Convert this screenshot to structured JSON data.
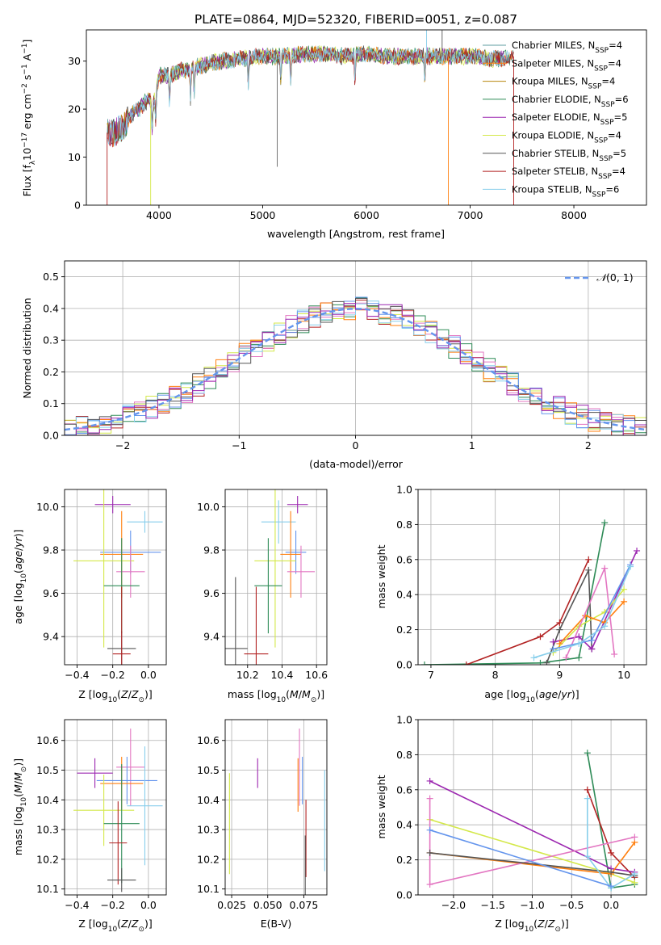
{
  "figure_title": "PLATE=0864, MJD=52320, FIBERID=0051, z=0.087",
  "colors": {
    "miles_chabrier": "#5f9ea0",
    "miles_salpeter": "#ff7f0e",
    "miles_kroupa": "#b8860b",
    "elodie_chabrier": "#2e8b57",
    "elodie_salpeter": "#9c27b0",
    "elodie_kroupa": "#d4e84a",
    "stelib_chabrier": "#555555",
    "stelib_salpeter": "#b22222",
    "stelib_kroupa": "#87ceeb",
    "extra_pink": "#e377c2",
    "extra_blue": "#6495ed",
    "normal_curve": "#6495ed"
  },
  "chart_data": [
    {
      "id": "spectrum",
      "type": "line",
      "xlabel": "wavelength [Angstrom, rest frame]",
      "ylabel": "Flux [f_λ 10^-17 erg cm^-2 s^-1 A^-1]",
      "xlim": [
        3300,
        8700
      ],
      "ylim": [
        0,
        36.5
      ],
      "xticks": [
        4000,
        5000,
        6000,
        7000,
        8000
      ],
      "yticks": [
        0,
        10,
        20,
        30
      ],
      "grid": false,
      "legend_position": "right",
      "continuum_x": [
        3500,
        3550,
        3650,
        3700,
        3800,
        3900,
        3950,
        4000,
        4100,
        4200,
        4400,
        4600,
        4800,
        5000,
        5200,
        5400,
        5600,
        5800,
        6000,
        6200,
        6400,
        6600,
        6800,
        7000,
        7200,
        7400
      ],
      "continuum_y": [
        15,
        15,
        16,
        18,
        20,
        22,
        21,
        27,
        27,
        28,
        29,
        30,
        30.5,
        31,
        31,
        31.5,
        31.5,
        31,
        31.5,
        31,
        31,
        31,
        31,
        31,
        30.5,
        30.5
      ],
      "series": [
        {
          "name": "Chabrier MILES, N_SSP=4",
          "legend_main": "Chabrier MILES, N",
          "legend_sub": "SSP",
          "legend_tail": "=4",
          "color_key": "miles_chabrier"
        },
        {
          "name": "Salpeter MILES, N_SSP=4",
          "legend_main": "Salpeter MILES, N",
          "legend_sub": "SSP",
          "legend_tail": "=4",
          "color_key": "miles_salpeter"
        },
        {
          "name": "Kroupa MILES, N_SSP=4",
          "legend_main": "Kroupa MILES, N",
          "legend_sub": "SSP",
          "legend_tail": "=4",
          "color_key": "miles_kroupa"
        },
        {
          "name": "Chabrier ELODIE, N_SSP=6",
          "legend_main": "Chabrier ELODIE, N",
          "legend_sub": "SSP",
          "legend_tail": "=6",
          "color_key": "elodie_chabrier"
        },
        {
          "name": "Salpeter ELODIE, N_SSP=5",
          "legend_main": "Salpeter ELODIE, N",
          "legend_sub": "SSP",
          "legend_tail": "=5",
          "color_key": "elodie_salpeter"
        },
        {
          "name": "Kroupa ELODIE, N_SSP=4",
          "legend_main": "Kroupa ELODIE, N",
          "legend_sub": "SSP",
          "legend_tail": "=4",
          "color_key": "elodie_kroupa"
        },
        {
          "name": "Chabrier STELIB, N_SSP=5",
          "legend_main": "Chabrier STELIB, N",
          "legend_sub": "SSP",
          "legend_tail": "=5",
          "color_key": "stelib_chabrier"
        },
        {
          "name": "Salpeter STELIB, N_SSP=4",
          "legend_main": "Salpeter STELIB, N",
          "legend_sub": "SSP",
          "legend_tail": "=4",
          "color_key": "stelib_salpeter"
        },
        {
          "name": "Kroupa STELIB, N_SSP=6",
          "legend_main": "Kroupa STELIB, N",
          "legend_sub": "SSP",
          "legend_tail": "=6",
          "color_key": "stelib_kroupa"
        }
      ]
    },
    {
      "id": "residuals",
      "type": "step-histogram",
      "xlabel": "(data-model)/error",
      "ylabel": "Normed distribution",
      "xlim": [
        -2.5,
        2.5
      ],
      "ylim": [
        0,
        0.55
      ],
      "xticks": [
        -2,
        -1,
        0,
        1,
        2
      ],
      "yticks": [
        0.0,
        0.1,
        0.2,
        0.3,
        0.4,
        0.5
      ],
      "grid": true,
      "legend": "N(0,1)",
      "legend_position": "top-right",
      "bin_width": 0.1
    },
    {
      "id": "age_vs_Z",
      "type": "errorbar",
      "xlabel": "Z [log10(Z/Z⊙)]",
      "ylabel": "age [log10(age/yr)]",
      "xlim": [
        -0.47,
        0.1
      ],
      "ylim": [
        9.27,
        10.08
      ],
      "xticks": [
        -0.4,
        -0.2,
        0.0
      ],
      "yticks": [
        9.4,
        9.6,
        9.8,
        10.0
      ],
      "grid": true,
      "points": [
        {
          "color_key": "elodie_salpeter",
          "x": -0.2,
          "xerr": 0.1,
          "y": 10.01,
          "yerr": 0.04
        },
        {
          "color_key": "stelib_kroupa",
          "x": -0.02,
          "xerr": 0.1,
          "y": 9.93,
          "yerr": 0.05
        },
        {
          "color_key": "extra_blue",
          "x": -0.1,
          "xerr": 0.17,
          "y": 9.79,
          "yerr": 0.1
        },
        {
          "color_key": "miles_salpeter",
          "x": -0.15,
          "xerr": 0.12,
          "y": 9.78,
          "yerr": 0.2
        },
        {
          "color_key": "elodie_kroupa",
          "x": -0.25,
          "xerr": 0.17,
          "y": 9.75,
          "yerr": 0.4
        },
        {
          "color_key": "extra_pink",
          "x": -0.1,
          "xerr": 0.08,
          "y": 9.7,
          "yerr": 0.12
        },
        {
          "color_key": "elodie_chabrier",
          "x": -0.15,
          "xerr": 0.1,
          "y": 9.635,
          "yerr": 0.22
        },
        {
          "color_key": "stelib_chabrier",
          "x": -0.15,
          "xerr": 0.08,
          "y": 9.345,
          "yerr": 0.08
        },
        {
          "color_key": "stelib_salpeter",
          "x": -0.15,
          "xerr": 0.05,
          "y": 9.32,
          "yerr": 0.31
        }
      ]
    },
    {
      "id": "age_vs_mass",
      "type": "errorbar",
      "xlabel": "mass [log10(M/M⊙)]",
      "ylabel": "",
      "xlim": [
        10.07,
        10.66
      ],
      "ylim": [
        9.27,
        10.08
      ],
      "xticks": [
        10.2,
        10.4,
        10.6
      ],
      "yticks": [
        9.4,
        9.6,
        9.8,
        10.0
      ],
      "grid": true,
      "points": [
        {
          "color_key": "elodie_salpeter",
          "x": 10.49,
          "xerr": 0.06,
          "y": 10.01,
          "yerr": 0.04
        },
        {
          "color_key": "stelib_kroupa",
          "x": 10.38,
          "xerr": 0.1,
          "y": 9.93,
          "yerr": 0.1
        },
        {
          "color_key": "extra_blue",
          "x": 10.48,
          "xerr": 0.06,
          "y": 9.79,
          "yerr": 0.1
        },
        {
          "color_key": "miles_salpeter",
          "x": 10.45,
          "xerr": 0.06,
          "y": 9.78,
          "yerr": 0.2
        },
        {
          "color_key": "elodie_kroupa",
          "x": 10.36,
          "xerr": 0.12,
          "y": 9.75,
          "yerr": 0.4
        },
        {
          "color_key": "extra_pink",
          "x": 10.51,
          "xerr": 0.08,
          "y": 9.7,
          "yerr": 0.12
        },
        {
          "color_key": "elodie_chabrier",
          "x": 10.32,
          "xerr": 0.08,
          "y": 9.635,
          "yerr": 0.22
        },
        {
          "color_key": "stelib_chabrier",
          "x": 10.13,
          "xerr": 0.07,
          "y": 9.345,
          "yerr": 0.33
        },
        {
          "color_key": "stelib_salpeter",
          "x": 10.25,
          "xerr": 0.07,
          "y": 9.32,
          "yerr": 0.31
        }
      ]
    },
    {
      "id": "weight_vs_age",
      "type": "line",
      "xlabel": "age [log10(age/yr)]",
      "ylabel": "mass weight",
      "xlim": [
        6.8,
        10.35
      ],
      "ylim": [
        0,
        1.0
      ],
      "xticks": [
        7,
        8,
        9,
        10
      ],
      "yticks": [
        0.0,
        0.2,
        0.4,
        0.6,
        0.8,
        1.0
      ],
      "grid": true,
      "series": [
        {
          "color_key": "elodie_chabrier",
          "x": [
            6.9,
            8.7,
            9.3,
            9.7
          ],
          "y": [
            0.0,
            0.01,
            0.04,
            0.81
          ]
        },
        {
          "color_key": "stelib_salpeter",
          "x": [
            7.55,
            8.7,
            9.0,
            9.45
          ],
          "y": [
            0.0,
            0.16,
            0.24,
            0.6
          ]
        },
        {
          "color_key": "stelib_chabrier",
          "x": [
            8.8,
            9.0,
            9.45,
            9.5
          ],
          "y": [
            0.01,
            0.2,
            0.54,
            0.09
          ]
        },
        {
          "color_key": "elodie_salpeter",
          "x": [
            8.9,
            9.3,
            9.5,
            10.2
          ],
          "y": [
            0.13,
            0.16,
            0.09,
            0.65
          ]
        },
        {
          "color_key": "elodie_kroupa",
          "x": [
            8.9,
            9.3,
            9.7,
            10.0
          ],
          "y": [
            0.07,
            0.22,
            0.3,
            0.43
          ]
        },
        {
          "color_key": "miles_salpeter",
          "x": [
            9.0,
            9.4,
            9.7,
            10.0
          ],
          "y": [
            0.12,
            0.28,
            0.24,
            0.36
          ]
        },
        {
          "color_key": "extra_pink",
          "x": [
            9.1,
            9.7,
            9.85
          ],
          "y": [
            0.04,
            0.55,
            0.06
          ]
        },
        {
          "color_key": "extra_blue",
          "x": [
            8.9,
            9.5,
            10.1
          ],
          "y": [
            0.09,
            0.14,
            0.57
          ]
        },
        {
          "color_key": "stelib_kroupa",
          "x": [
            8.6,
            9.3,
            9.7,
            10.1
          ],
          "y": [
            0.04,
            0.12,
            0.22,
            0.56
          ]
        }
      ]
    },
    {
      "id": "mass_vs_Z",
      "type": "errorbar",
      "xlabel": "Z [log10(Z/Z⊙)]",
      "ylabel": "mass [log10(M/M⊙)]",
      "xlim": [
        -0.47,
        0.1
      ],
      "ylim": [
        10.08,
        10.67
      ],
      "xticks": [
        -0.4,
        -0.2,
        0.0
      ],
      "yticks": [
        10.1,
        10.2,
        10.3,
        10.4,
        10.5,
        10.6
      ],
      "grid": true,
      "points": [
        {
          "color_key": "extra_pink",
          "x": -0.1,
          "xerr": 0.08,
          "y": 10.51,
          "yerr": 0.13
        },
        {
          "color_key": "elodie_salpeter",
          "x": -0.3,
          "xerr": 0.1,
          "y": 10.49,
          "yerr": 0.05
        },
        {
          "color_key": "extra_blue",
          "x": -0.12,
          "xerr": 0.17,
          "y": 10.465,
          "yerr": 0.08
        },
        {
          "color_key": "miles_salpeter",
          "x": -0.15,
          "xerr": 0.12,
          "y": 10.455,
          "yerr": 0.09
        },
        {
          "color_key": "stelib_kroupa",
          "x": -0.02,
          "xerr": 0.1,
          "y": 10.38,
          "yerr": 0.2
        },
        {
          "color_key": "elodie_kroupa",
          "x": -0.25,
          "xerr": 0.17,
          "y": 10.365,
          "yerr": 0.12
        },
        {
          "color_key": "elodie_chabrier",
          "x": -0.15,
          "xerr": 0.1,
          "y": 10.32,
          "yerr": 0.2
        },
        {
          "color_key": "stelib_salpeter",
          "x": -0.17,
          "xerr": 0.05,
          "y": 10.255,
          "yerr": 0.14
        },
        {
          "color_key": "stelib_chabrier",
          "x": -0.15,
          "xerr": 0.08,
          "y": 10.13,
          "yerr": 0.04
        }
      ]
    },
    {
      "id": "mass_vs_EBV",
      "type": "errorbar",
      "xlabel": "E(B-V)",
      "ylabel": "",
      "xlim": [
        0.0205,
        0.091
      ],
      "ylim": [
        10.08,
        10.67
      ],
      "xticks": [
        0.025,
        0.05,
        0.075
      ],
      "yticks": [
        10.1,
        10.2,
        10.3,
        10.4,
        10.5,
        10.6
      ],
      "grid": true,
      "points": [
        {
          "color_key": "elodie_kroupa",
          "x": 0.0235,
          "xerr": 0,
          "y": 10.32,
          "yerr": 0.17
        },
        {
          "color_key": "elodie_salpeter",
          "x": 0.043,
          "xerr": 0,
          "y": 10.49,
          "yerr": 0.05
        },
        {
          "color_key": "extra_pink",
          "x": 0.072,
          "xerr": 0,
          "y": 10.51,
          "yerr": 0.13
        },
        {
          "color_key": "extra_blue",
          "x": 0.074,
          "xerr": 0,
          "y": 10.465,
          "yerr": 0.08
        },
        {
          "color_key": "miles_salpeter",
          "x": 0.071,
          "xerr": 0,
          "y": 10.45,
          "yerr": 0.09
        },
        {
          "color_key": "stelib_salpeter",
          "x": 0.0765,
          "xerr": 0,
          "y": 10.27,
          "yerr": 0.13
        },
        {
          "color_key": "stelib_chabrier",
          "x": 0.076,
          "xerr": 0,
          "y": 10.18,
          "yerr": 0.1
        },
        {
          "color_key": "stelib_kroupa",
          "x": 0.0895,
          "xerr": 0,
          "y": 10.33,
          "yerr": 0.17
        }
      ]
    },
    {
      "id": "weight_vs_Z",
      "type": "line",
      "xlabel": "Z [log10(Z/Z⊙)]",
      "ylabel": "mass weight",
      "xlim": [
        -2.45,
        0.45
      ],
      "ylim": [
        0,
        1.0
      ],
      "xticks": [
        -2.0,
        -1.5,
        -1.0,
        -0.5,
        0.0
      ],
      "yticks": [
        0.0,
        0.2,
        0.4,
        0.6,
        0.8,
        1.0
      ],
      "grid": true,
      "series": [
        {
          "color_key": "elodie_chabrier",
          "x": [
            -0.3,
            0.0,
            0.3
          ],
          "y": [
            0.81,
            0.04,
            0.06
          ]
        },
        {
          "color_key": "stelib_salpeter",
          "x": [
            -0.3,
            0.0,
            0.3
          ],
          "y": [
            0.6,
            0.24,
            0.1
          ]
        },
        {
          "color_key": "elodie_salpeter",
          "x": [
            -2.3,
            0.0,
            0.3
          ],
          "y": [
            0.65,
            0.15,
            0.13
          ]
        },
        {
          "color_key": "elodie_kroupa",
          "x": [
            -2.3,
            0.0,
            0.3
          ],
          "y": [
            0.43,
            0.12,
            0.07
          ]
        },
        {
          "color_key": "miles_salpeter",
          "x": [
            -2.3,
            0.0,
            0.3
          ],
          "y": [
            0.24,
            0.12,
            0.3
          ]
        },
        {
          "color_key": "extra_pink",
          "x": [
            -2.3,
            -2.3,
            0.3
          ],
          "y": [
            0.55,
            0.06,
            0.33
          ]
        },
        {
          "color_key": "stelib_chabrier",
          "x": [
            -2.3,
            0.0,
            0.3
          ],
          "y": [
            0.24,
            0.13,
            0.11
          ]
        },
        {
          "color_key": "stelib_kroupa",
          "x": [
            -0.3,
            -0.3,
            0.0,
            0.3
          ],
          "y": [
            0.55,
            0.22,
            0.04,
            0.12
          ]
        },
        {
          "color_key": "extra_blue",
          "x": [
            -2.3,
            0.0
          ],
          "y": [
            0.37,
            0.05
          ]
        }
      ]
    }
  ]
}
